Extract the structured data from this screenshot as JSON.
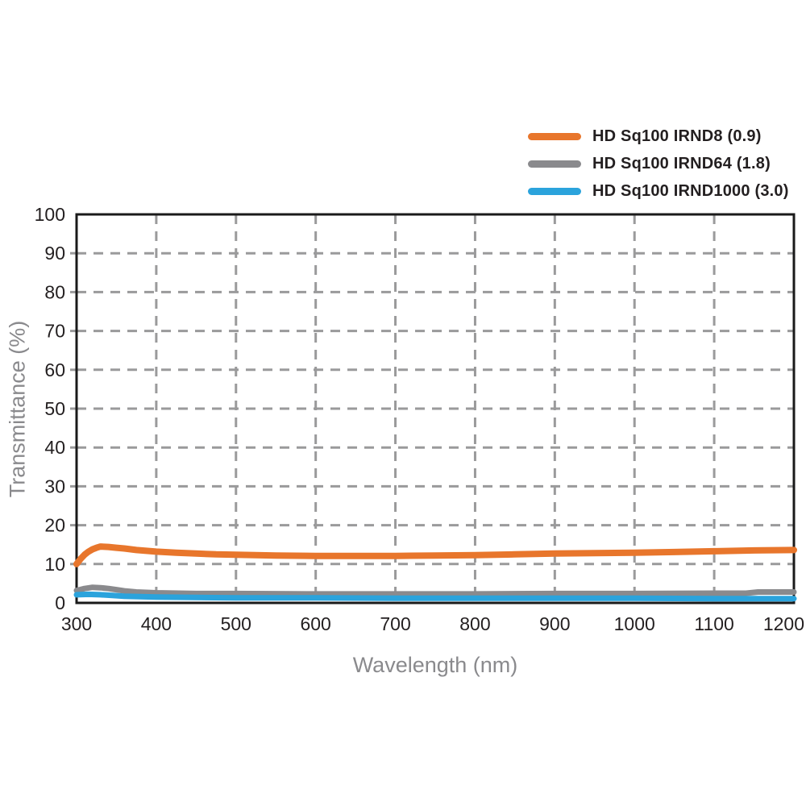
{
  "chart_data": {
    "type": "line",
    "title": "",
    "xlabel": "Wavelength (nm)",
    "ylabel": "Transmittance (%)",
    "xlim": [
      300,
      1200
    ],
    "ylim": [
      0,
      100
    ],
    "xticks": [
      300,
      400,
      500,
      600,
      700,
      800,
      900,
      1000,
      1100,
      1200
    ],
    "yticks": [
      0,
      10,
      20,
      30,
      40,
      50,
      60,
      70,
      80,
      90,
      100
    ],
    "grid": "dashed",
    "legend_position": "top-right",
    "series": [
      {
        "name": "HD Sq100 IRND8 (0.9)",
        "color": "#E8762C",
        "line_width": 8,
        "points": [
          [
            300,
            10.0
          ],
          [
            305,
            11.3
          ],
          [
            310,
            12.4
          ],
          [
            315,
            13.2
          ],
          [
            320,
            13.8
          ],
          [
            325,
            14.2
          ],
          [
            330,
            14.5
          ],
          [
            340,
            14.4
          ],
          [
            350,
            14.2
          ],
          [
            360,
            14.0
          ],
          [
            375,
            13.6
          ],
          [
            400,
            13.2
          ],
          [
            425,
            12.9
          ],
          [
            450,
            12.7
          ],
          [
            475,
            12.5
          ],
          [
            500,
            12.4
          ],
          [
            525,
            12.3
          ],
          [
            550,
            12.2
          ],
          [
            600,
            12.1
          ],
          [
            650,
            12.1
          ],
          [
            700,
            12.1
          ],
          [
            750,
            12.2
          ],
          [
            800,
            12.3
          ],
          [
            850,
            12.5
          ],
          [
            900,
            12.7
          ],
          [
            950,
            12.8
          ],
          [
            1000,
            12.9
          ],
          [
            1050,
            13.1
          ],
          [
            1100,
            13.3
          ],
          [
            1150,
            13.5
          ],
          [
            1200,
            13.6
          ]
        ]
      },
      {
        "name": "HD Sq100 IRND64 (1.8)",
        "color": "#8A8A8D",
        "line_width": 7,
        "points": [
          [
            300,
            3.2
          ],
          [
            310,
            3.7
          ],
          [
            320,
            4.0
          ],
          [
            330,
            3.9
          ],
          [
            340,
            3.7
          ],
          [
            350,
            3.4
          ],
          [
            360,
            3.1
          ],
          [
            375,
            2.8
          ],
          [
            400,
            2.6
          ],
          [
            450,
            2.4
          ],
          [
            500,
            2.4
          ],
          [
            600,
            2.3
          ],
          [
            700,
            2.3
          ],
          [
            800,
            2.3
          ],
          [
            900,
            2.4
          ],
          [
            1000,
            2.4
          ],
          [
            1100,
            2.5
          ],
          [
            1140,
            2.5
          ],
          [
            1155,
            2.8
          ],
          [
            1200,
            2.8
          ]
        ]
      },
      {
        "name": "HD Sq100 IRND1000 (3.0)",
        "color": "#2BA3DC",
        "line_width": 7,
        "points": [
          [
            300,
            2.1
          ],
          [
            315,
            2.2
          ],
          [
            330,
            2.1
          ],
          [
            345,
            1.9
          ],
          [
            360,
            1.7
          ],
          [
            380,
            1.6
          ],
          [
            400,
            1.5
          ],
          [
            450,
            1.4
          ],
          [
            500,
            1.3
          ],
          [
            600,
            1.3
          ],
          [
            700,
            1.2
          ],
          [
            800,
            1.2
          ],
          [
            900,
            1.2
          ],
          [
            1000,
            1.2
          ],
          [
            1100,
            1.1
          ],
          [
            1200,
            1.1
          ]
        ]
      }
    ]
  },
  "colors": {
    "background": "#FFFFFF",
    "grid": "#9A9A9B",
    "axis": "#1A1A1A",
    "tick_label": "#231F20",
    "axis_title": "#8A8A8D",
    "legend_text": "#231F20"
  }
}
